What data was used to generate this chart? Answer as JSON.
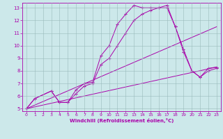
{
  "bg_color": "#cce8ea",
  "line_color": "#aa00aa",
  "grid_color": "#99bbbb",
  "xlabel": "Windchill (Refroidissement éolien,°C)",
  "xlim": [
    -0.5,
    23.5
  ],
  "ylim": [
    4.8,
    13.4
  ],
  "yticks": [
    5,
    6,
    7,
    8,
    9,
    10,
    11,
    12,
    13
  ],
  "xticks": [
    0,
    1,
    2,
    3,
    4,
    5,
    6,
    7,
    8,
    9,
    10,
    11,
    12,
    13,
    14,
    15,
    16,
    17,
    18,
    19,
    20,
    21,
    22,
    23
  ],
  "series": [
    {
      "x": [
        0,
        1,
        3,
        4,
        5,
        6,
        7,
        8,
        9,
        10,
        11,
        12,
        13,
        14,
        15,
        16,
        17,
        18,
        19,
        20,
        21,
        22,
        23
      ],
      "y": [
        5.0,
        5.8,
        6.4,
        5.5,
        5.5,
        6.5,
        7.0,
        7.1,
        9.2,
        10.0,
        11.7,
        12.5,
        13.2,
        13.0,
        13.0,
        13.0,
        13.2,
        11.5,
        9.7,
        8.0,
        7.5,
        8.2,
        8.3
      ],
      "marker": true
    },
    {
      "x": [
        0,
        1,
        3,
        4,
        5,
        6,
        7,
        8,
        9,
        10,
        11,
        12,
        13,
        14,
        15,
        16,
        17,
        18,
        19,
        20,
        21,
        22,
        23
      ],
      "y": [
        5.0,
        5.8,
        6.4,
        5.5,
        5.5,
        6.2,
        6.8,
        7.0,
        8.5,
        9.0,
        10.0,
        11.0,
        12.0,
        12.5,
        12.8,
        13.0,
        13.0,
        11.5,
        9.5,
        8.0,
        7.5,
        8.0,
        8.2
      ],
      "marker": true
    },
    {
      "x": [
        0,
        23
      ],
      "y": [
        5.0,
        11.5
      ],
      "marker": false
    },
    {
      "x": [
        0,
        23
      ],
      "y": [
        5.0,
        8.3
      ],
      "marker": false
    }
  ]
}
